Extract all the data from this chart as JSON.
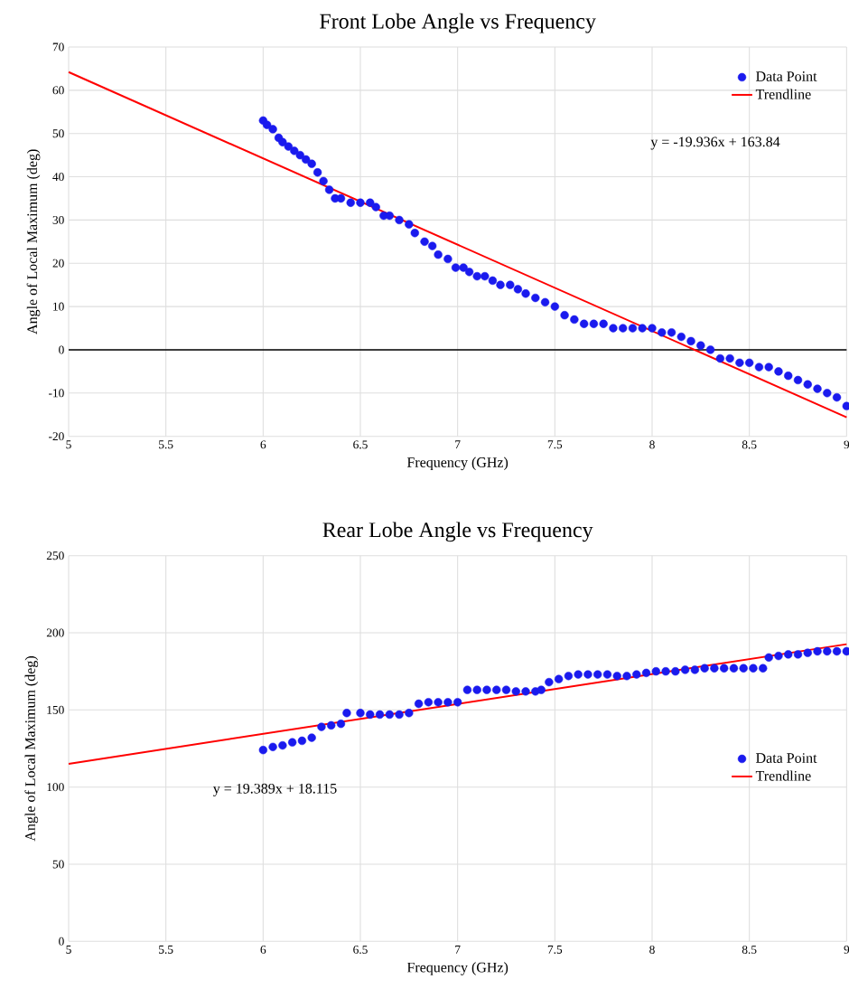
{
  "chart_data": [
    {
      "type": "scatter",
      "title": "Front Lobe Angle vs Frequency",
      "xlabel": "Frequency (GHz)",
      "ylabel": "Angle of Local Maximum (deg)",
      "xlim": [
        5,
        9
      ],
      "xticks": [
        5,
        5.5,
        6,
        6.5,
        7,
        7.5,
        8,
        8.5,
        9
      ],
      "ylim": [
        -20,
        70
      ],
      "yticks": [
        -20,
        -10,
        0,
        10,
        20,
        30,
        40,
        50,
        60,
        70
      ],
      "grid": true,
      "legend": "top right",
      "ref_lines": [
        {
          "axis": "y",
          "value": 0,
          "color": "#000000"
        }
      ],
      "annotations": [
        "y = -19.936x + 163.84"
      ],
      "series": [
        {
          "name": "Data Point",
          "type": "scatter",
          "color": "#1a1aee",
          "marker": "circle",
          "x": [
            6.0,
            6.02,
            6.05,
            6.08,
            6.1,
            6.13,
            6.16,
            6.19,
            6.22,
            6.25,
            6.28,
            6.31,
            6.34,
            6.37,
            6.4,
            6.45,
            6.5,
            6.55,
            6.58,
            6.62,
            6.65,
            6.7,
            6.75,
            6.78,
            6.83,
            6.87,
            6.9,
            6.95,
            6.99,
            7.03,
            7.06,
            7.1,
            7.14,
            7.18,
            7.22,
            7.27,
            7.31,
            7.35,
            7.4,
            7.45,
            7.5,
            7.55,
            7.6,
            7.65,
            7.7,
            7.75,
            7.8,
            7.85,
            7.9,
            7.95,
            8.0,
            8.05,
            8.1,
            8.15,
            8.2,
            8.25,
            8.3,
            8.35,
            8.4,
            8.45,
            8.5,
            8.55,
            8.6,
            8.65,
            8.7,
            8.75,
            8.8,
            8.85,
            8.9,
            8.95,
            9.0
          ],
          "values": [
            53,
            52,
            51,
            49,
            48,
            47,
            46,
            45,
            44,
            43,
            41,
            39,
            37,
            35,
            35,
            34,
            34,
            34,
            33,
            31,
            31,
            30,
            29,
            27,
            25,
            24,
            22,
            21,
            19,
            19,
            18,
            17,
            17,
            16,
            15,
            15,
            14,
            13,
            12,
            11,
            10,
            8,
            7,
            6,
            6,
            6,
            5,
            5,
            5,
            5,
            5,
            4,
            4,
            3,
            2,
            1,
            0,
            -2,
            -2,
            -3,
            -3,
            -4,
            -4,
            -5,
            -6,
            -7,
            -8,
            -9,
            -10,
            -11,
            -13
          ]
        },
        {
          "name": "Trendline",
          "type": "line",
          "color": "#ff0000",
          "marker": "none",
          "line_style": "solid",
          "x": [
            5,
            9
          ],
          "values": [
            64.2,
            -15.6
          ]
        }
      ]
    },
    {
      "type": "scatter",
      "title": "Rear Lobe Angle vs Frequency",
      "xlabel": "Frequency (GHz)",
      "ylabel": "Angle of Local Maximum (deg)",
      "xlim": [
        5,
        9
      ],
      "xticks": [
        5,
        5.5,
        6,
        6.5,
        7,
        7.5,
        8,
        8.5,
        9
      ],
      "ylim": [
        0,
        250
      ],
      "yticks": [
        0,
        50,
        100,
        150,
        200,
        250
      ],
      "grid": true,
      "legend": "right",
      "annotations": [
        "y = 19.389x + 18.115"
      ],
      "series": [
        {
          "name": "Data Point",
          "type": "scatter",
          "color": "#1a1aee",
          "marker": "circle",
          "x": [
            6.0,
            6.05,
            6.1,
            6.15,
            6.2,
            6.25,
            6.3,
            6.35,
            6.4,
            6.43,
            6.5,
            6.55,
            6.6,
            6.65,
            6.7,
            6.75,
            6.8,
            6.85,
            6.9,
            6.95,
            7.0,
            7.05,
            7.1,
            7.15,
            7.2,
            7.25,
            7.3,
            7.35,
            7.4,
            7.43,
            7.47,
            7.52,
            7.57,
            7.62,
            7.67,
            7.72,
            7.77,
            7.82,
            7.87,
            7.92,
            7.97,
            8.02,
            8.07,
            8.12,
            8.17,
            8.22,
            8.27,
            8.32,
            8.37,
            8.42,
            8.47,
            8.52,
            8.57,
            8.6,
            8.65,
            8.7,
            8.75,
            8.8,
            8.85,
            8.9,
            8.95,
            9.0
          ],
          "values": [
            124,
            126,
            127,
            129,
            130,
            132,
            139,
            140,
            141,
            148,
            148,
            147,
            147,
            147,
            147,
            148,
            154,
            155,
            155,
            155,
            155,
            163,
            163,
            163,
            163,
            163,
            162,
            162,
            162,
            163,
            168,
            170,
            172,
            173,
            173,
            173,
            173,
            172,
            172,
            173,
            174,
            175,
            175,
            175,
            176,
            176,
            177,
            177,
            177,
            177,
            177,
            177,
            177,
            184,
            185,
            186,
            186,
            187,
            188,
            188,
            188,
            188
          ]
        },
        {
          "name": "Trendline",
          "type": "line",
          "color": "#ff0000",
          "marker": "none",
          "line_style": "solid",
          "x": [
            5,
            9
          ],
          "values": [
            115.1,
            192.6
          ]
        }
      ]
    }
  ]
}
